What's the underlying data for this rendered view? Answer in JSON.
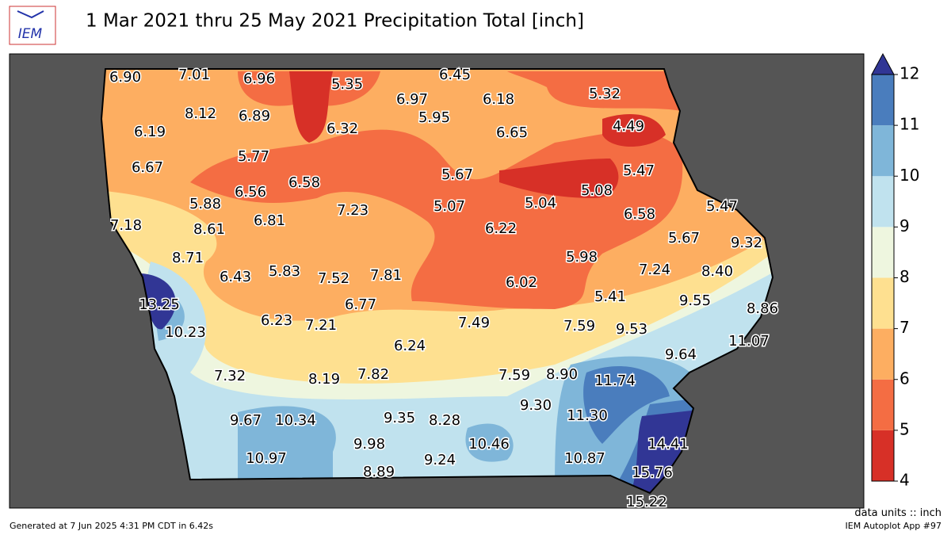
{
  "header": {
    "logo_text": "IEM",
    "title": "1 Mar 2021 thru 25 May 2021 Precipitation Total [inch]"
  },
  "map": {
    "values": [
      6.9,
      7.01,
      6.96,
      5.35,
      6.45,
      6.97,
      6.18,
      5.32,
      8.12,
      6.89,
      6.32,
      5.95,
      6.65,
      4.49,
      6.19,
      6.67,
      5.77,
      6.58,
      5.67,
      5.47,
      6.56,
      5.08,
      5.88,
      7.23,
      5.07,
      5.04,
      5.47,
      7.18,
      8.61,
      6.81,
      6.22,
      6.58,
      5.67,
      9.32,
      8.71,
      5.98,
      6.43,
      5.83,
      7.52,
      7.81,
      6.02,
      7.24,
      8.4,
      13.25,
      6.77,
      5.41,
      9.55,
      8.86,
      10.23,
      6.23,
      7.21,
      7.49,
      7.59,
      9.53,
      11.07,
      6.24,
      9.64,
      7.32,
      8.19,
      7.82,
      7.59,
      8.9,
      11.74,
      9.3,
      9.67,
      10.34,
      9.35,
      8.28,
      11.3,
      14.41,
      9.98,
      10.46,
      10.97,
      9.24,
      10.87,
      15.76,
      8.89,
      15.22
    ],
    "value_labels": [
      "6.90",
      "7.01",
      "6.96",
      "5.35",
      "6.45",
      "6.97",
      "6.18",
      "5.32",
      "8.12",
      "6.89",
      "6.32",
      "5.95",
      "6.65",
      "4.49",
      "6.19",
      "6.67",
      "5.77",
      "6.58",
      "5.67",
      "5.47",
      "6.56",
      "5.08",
      "5.88",
      "7.23",
      "5.07",
      "5.04",
      "5.47",
      "7.18",
      "8.61",
      "6.81",
      "6.22",
      "6.58",
      "5.67",
      "9.32",
      "8.71",
      "5.98",
      "6.43",
      "5.83",
      "7.52",
      "7.81",
      "6.02",
      "7.24",
      "8.40",
      "13.25",
      "6.77",
      "5.41",
      "9.55",
      "8.86",
      "10.23",
      "6.23",
      "7.21",
      "7.49",
      "7.59",
      "9.53",
      "11.07",
      "6.24",
      "9.64",
      "7.32",
      "8.19",
      "7.82",
      "7.59",
      "8.90",
      "11.74",
      "9.30",
      "9.67",
      "10.34",
      "9.35",
      "8.28",
      "11.30",
      "14.41",
      "9.98",
      "10.46",
      "10.97",
      "9.24",
      "10.87",
      "15.76",
      "8.89",
      "15.22"
    ],
    "colorbar": {
      "ticks": [
        4,
        5,
        6,
        7,
        8,
        9,
        10,
        11,
        12
      ],
      "colors": [
        "#d73027",
        "#f46d43",
        "#fdae61",
        "#fee090",
        "#eef6df",
        "#c0e2ee",
        "#7fb6d9",
        "#4a7dbd"
      ],
      "extend_color": "#313695"
    }
  },
  "footer": {
    "left": "Generated at 7 Jun 2025 4:31 PM CDT in 6.42s",
    "units": "data units :: inch",
    "app": "IEM Autoplot App #97"
  }
}
